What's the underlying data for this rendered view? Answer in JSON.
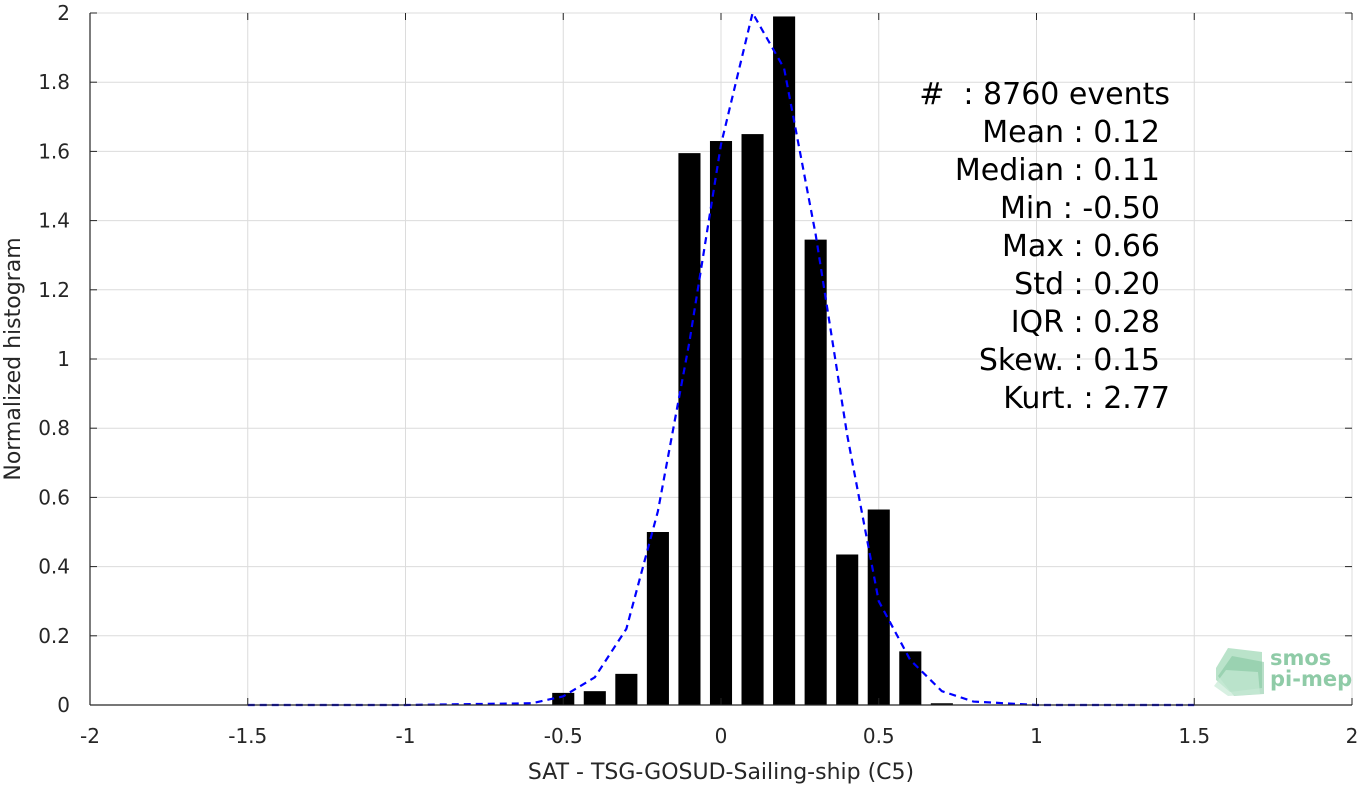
{
  "chart_data": {
    "type": "bar",
    "xlabel": "SAT - TSG-GOSUD-Sailing-ship (C5)",
    "ylabel": "Normalized histogram",
    "xlim": [
      -2,
      2
    ],
    "ylim": [
      0,
      2
    ],
    "grid": true,
    "xticks": [
      -2,
      -1.5,
      -1,
      -0.5,
      0,
      0.5,
      1,
      1.5,
      2
    ],
    "xtick_labels": [
      "-2",
      "-1.5",
      "-1",
      "-0.5",
      "0",
      "0.5",
      "1",
      "1.5",
      "2"
    ],
    "yticks": [
      0,
      0.2,
      0.4,
      0.6,
      0.8,
      1,
      1.2,
      1.4,
      1.6,
      1.8,
      2
    ],
    "ytick_labels": [
      "0",
      "0.2",
      "0.4",
      "0.6",
      "0.8",
      "1",
      "1.2",
      "1.4",
      "1.6",
      "1.8",
      "2"
    ],
    "bar_width": 0.07,
    "series": [
      {
        "kind": "bar",
        "color": "#000000",
        "x": [
          -0.5,
          -0.4,
          -0.3,
          -0.2,
          -0.1,
          0.0,
          0.1,
          0.2,
          0.3,
          0.4,
          0.5,
          0.6,
          0.7
        ],
        "values": [
          0.035,
          0.04,
          0.09,
          0.5,
          1.595,
          1.63,
          1.65,
          1.99,
          1.345,
          0.435,
          0.565,
          0.155,
          0.005
        ]
      },
      {
        "kind": "line",
        "style": "dashed",
        "color": "#0000ff",
        "x": [
          -1.5,
          -1.0,
          -0.6,
          -0.5,
          -0.4,
          -0.3,
          -0.2,
          -0.1,
          0.0,
          0.1,
          0.2,
          0.3,
          0.4,
          0.5,
          0.6,
          0.7,
          0.8,
          1.0,
          1.5
        ],
        "values": [
          0.0,
          0.0,
          0.005,
          0.025,
          0.08,
          0.22,
          0.56,
          1.05,
          1.62,
          2.0,
          1.84,
          1.36,
          0.78,
          0.3,
          0.13,
          0.04,
          0.01,
          0.0,
          0.0
        ]
      }
    ],
    "annotations": [
      "#  : 8760 events",
      "Mean : 0.12",
      "Median : 0.11",
      "Min : -0.50",
      "Max : 0.66",
      "Std : 0.20",
      "IQR : 0.28",
      "Skew. : 0.15",
      "Kurt. : 2.77"
    ]
  },
  "logo": {
    "line1": "smos",
    "line2": "pi-mep",
    "color": "#8fcba7"
  }
}
